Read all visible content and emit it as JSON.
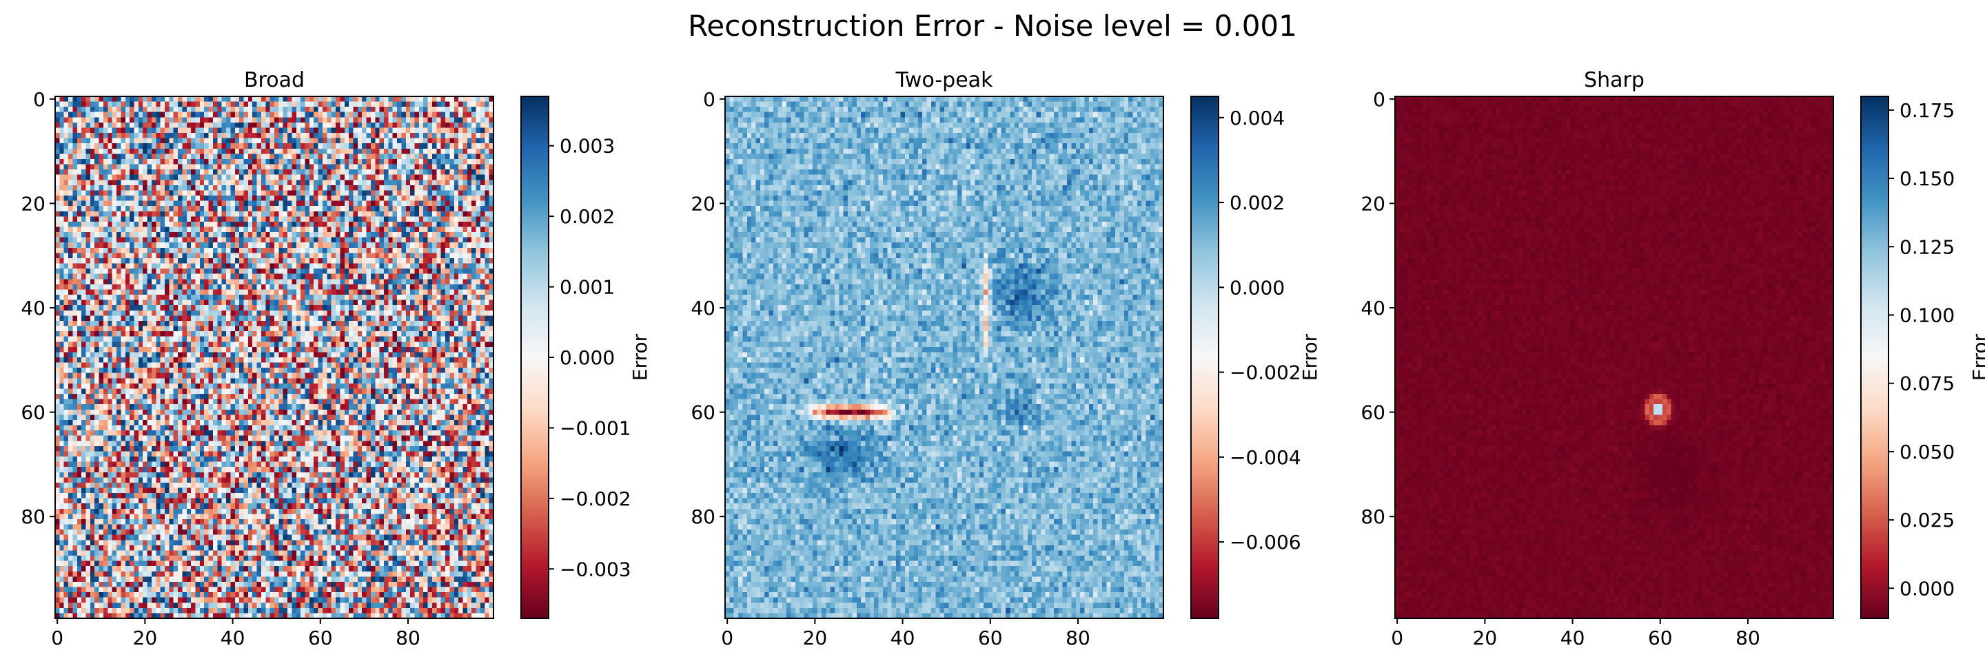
{
  "figure": {
    "suptitle": "Reconstruction Error - Noise level = 0.001"
  },
  "chart_data": [
    {
      "type": "heatmap",
      "title": "Broad",
      "xlabel": "",
      "ylabel": "",
      "grid_size": [
        100,
        100
      ],
      "x_ticks": [
        0,
        20,
        40,
        60,
        80
      ],
      "y_ticks": [
        0,
        20,
        40,
        60,
        80
      ],
      "x_tick_labels": [
        "0",
        "20",
        "40",
        "60",
        "80"
      ],
      "y_tick_labels": [
        "0",
        "20",
        "40",
        "60",
        "80"
      ],
      "colormap": "RdBu",
      "vmin": -0.0037,
      "vmax": 0.0037,
      "colorbar_label": "Error",
      "colorbar_ticks": [
        0.003,
        0.002,
        0.001,
        0.0,
        -0.001,
        -0.002,
        -0.003
      ],
      "colorbar_tick_labels": [
        "0.003",
        "0.002",
        "0.001",
        "0.000",
        "−0.001",
        "−0.002",
        "−0.003"
      ],
      "pattern": "uniform random noise"
    },
    {
      "type": "heatmap",
      "title": "Two-peak",
      "xlabel": "",
      "ylabel": "",
      "grid_size": [
        100,
        100
      ],
      "x_ticks": [
        0,
        20,
        40,
        60,
        80
      ],
      "y_ticks": [
        0,
        20,
        40,
        60,
        80
      ],
      "x_tick_labels": [
        "0",
        "20",
        "40",
        "60",
        "80"
      ],
      "y_tick_labels": [
        "0",
        "20",
        "40",
        "60",
        "80"
      ],
      "colormap": "RdBu",
      "vmin": -0.0078,
      "vmax": 0.0045,
      "colorbar_label": "Error",
      "colorbar_ticks": [
        0.004,
        0.002,
        0.0,
        -0.002,
        -0.004,
        -0.006
      ],
      "colorbar_tick_labels": [
        "0.004",
        "0.002",
        "0.000",
        "−0.002",
        "−0.004",
        "−0.006"
      ],
      "features": [
        {
          "kind": "negative streak (horizontal)",
          "x_range": [
            15,
            42
          ],
          "y_center": 60,
          "peak_value": -0.0075
        },
        {
          "kind": "negative streak (vertical)",
          "x_center": 59,
          "y_range": [
            27,
            52
          ],
          "peak_value": -0.003
        },
        {
          "kind": "positive blob",
          "x_center": 67,
          "y_center": 37,
          "peak_value": 0.003
        },
        {
          "kind": "positive blob",
          "x_center": 27,
          "y_center": 68,
          "peak_value": 0.003
        },
        {
          "kind": "positive blob",
          "x_center": 65,
          "y_center": 59,
          "peak_value": 0.002
        }
      ]
    },
    {
      "type": "heatmap",
      "title": "Sharp",
      "xlabel": "",
      "ylabel": "",
      "grid_size": [
        100,
        100
      ],
      "x_ticks": [
        0,
        20,
        40,
        60,
        80
      ],
      "y_ticks": [
        0,
        20,
        40,
        60,
        80
      ],
      "x_tick_labels": [
        "0",
        "20",
        "40",
        "60",
        "80"
      ],
      "y_tick_labels": [
        "0",
        "20",
        "40",
        "60",
        "80"
      ],
      "colormap": "RdBu",
      "vmin": -0.011,
      "vmax": 0.18,
      "colorbar_label": "Error",
      "colorbar_ticks": [
        0.175,
        0.15,
        0.125,
        0.1,
        0.075,
        0.05,
        0.025,
        0.0
      ],
      "colorbar_tick_labels": [
        "0.175",
        "0.150",
        "0.125",
        "0.100",
        "0.075",
        "0.050",
        "0.025",
        "0.000"
      ],
      "features": [
        {
          "kind": "sharp positive peak",
          "x_center": 59.5,
          "y_center": 59.5,
          "peak_value": 0.175
        },
        {
          "kind": "negative halo",
          "x_center": 63,
          "y_center": 72,
          "min_value": -0.011
        }
      ]
    }
  ]
}
